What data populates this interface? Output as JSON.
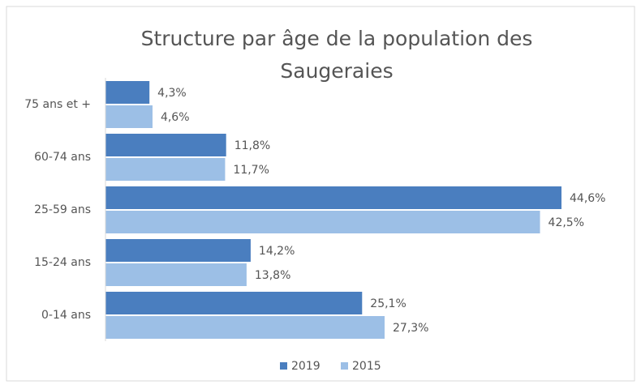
{
  "chart_data": {
    "type": "hbar",
    "title": "Structure par âge de la population des Saugeraies",
    "categories": [
      "75 ans et +",
      "60-74 ans",
      "25-59 ans",
      "15-24 ans",
      "0-14 ans"
    ],
    "series": [
      {
        "name": "2019",
        "color": "#4a7ebf",
        "values": [
          4.3,
          11.8,
          44.6,
          14.2,
          25.1
        ],
        "value_labels": [
          "4,3%",
          "11,8%",
          "44,6%",
          "14,2%",
          "25,1%"
        ]
      },
      {
        "name": "2015",
        "color": "#9cbfe6",
        "values": [
          4.6,
          11.7,
          42.5,
          13.8,
          27.3
        ],
        "value_labels": [
          "4,6%",
          "11,7%",
          "42,5%",
          "13,8%",
          "27,3%"
        ]
      }
    ],
    "legend": "bottom"
  }
}
